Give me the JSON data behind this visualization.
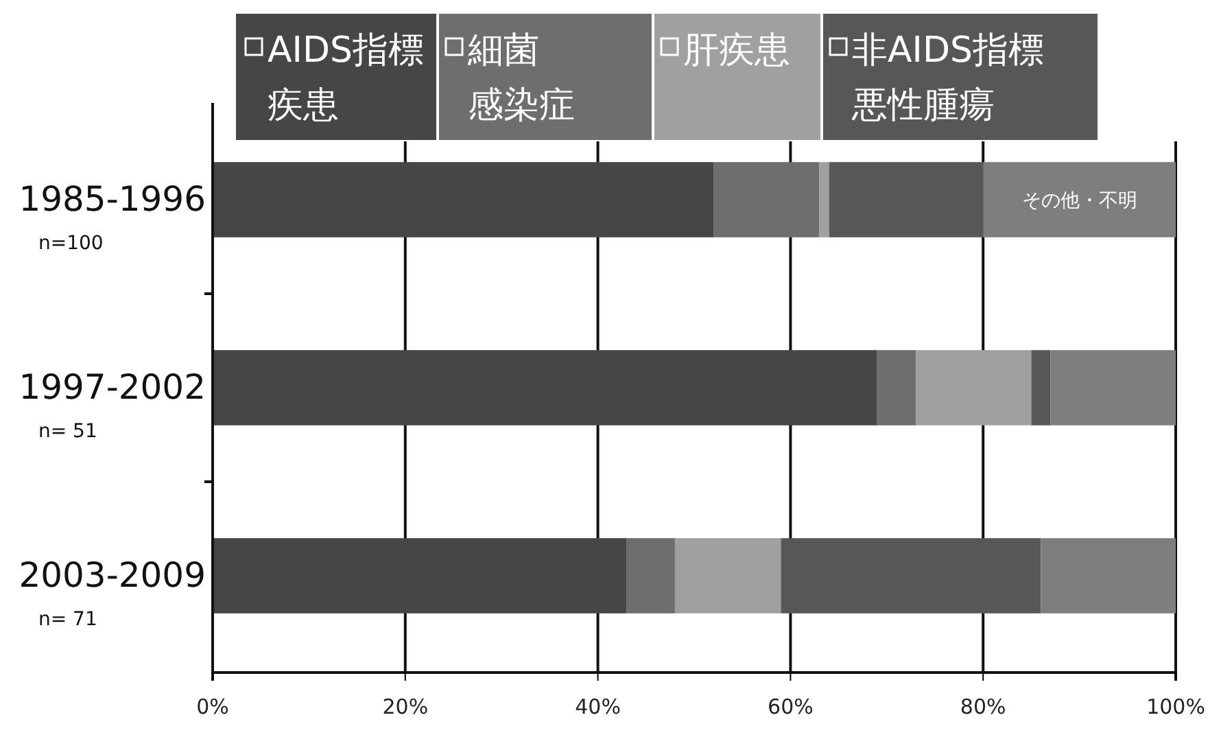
{
  "chart_data": {
    "type": "bar",
    "orientation": "horizontal",
    "stacked": true,
    "categories": [
      "1985-1996\nn=100",
      "1997-2002\nn= 51",
      "2003-2009\nn= 71"
    ],
    "series": [
      {
        "name": "AIDS指標疾患",
        "color": "#464646",
        "values": [
          52,
          69,
          43
        ]
      },
      {
        "name": "細菌感染症",
        "color": "#6e6e6e",
        "values": [
          11,
          4,
          5
        ]
      },
      {
        "name": "肝疾患",
        "color": "#a0a0a0",
        "values": [
          1,
          12,
          11
        ]
      },
      {
        "name": "非AIDS指標悪性腫瘍",
        "color": "#575757",
        "values": [
          16,
          2,
          27
        ]
      },
      {
        "name": "その他・不明",
        "color": "#7e7e7e",
        "values": [
          20,
          13,
          14
        ]
      }
    ],
    "xlim": [
      0,
      100
    ],
    "xticks": [
      {
        "value": 0,
        "label": "0%"
      },
      {
        "value": 20,
        "label": "20%"
      },
      {
        "value": 40,
        "label": "40%"
      },
      {
        "value": 60,
        "label": "60%"
      },
      {
        "value": 80,
        "label": "80%"
      },
      {
        "value": 100,
        "label": "100%"
      }
    ],
    "grid": "x",
    "legend": "top"
  }
}
